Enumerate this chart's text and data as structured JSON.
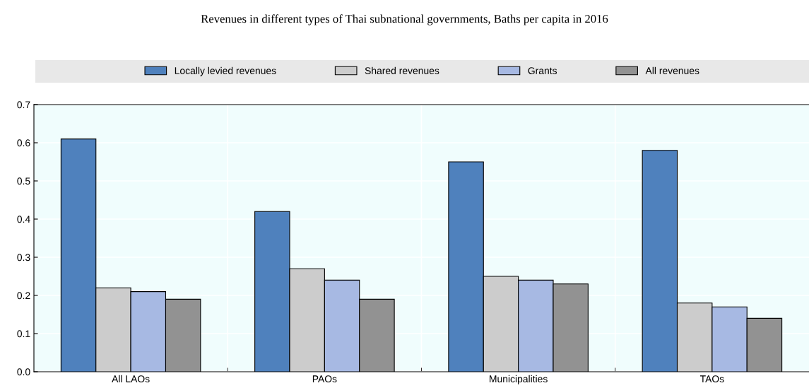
{
  "chart_data": {
    "type": "bar",
    "title": "Revenues in different types of Thai subnational governments, Baths per capita in 2016",
    "categories": [
      "All LAOs",
      "PAOs",
      "Municipalities",
      "TAOs"
    ],
    "series": [
      {
        "name": "Locally levied revenues",
        "color": "#4f81bd",
        "values": [
          0.61,
          0.42,
          0.55,
          0.58
        ]
      },
      {
        "name": "Shared revenues",
        "color": "#cccccc",
        "values": [
          0.22,
          0.27,
          0.25,
          0.18
        ]
      },
      {
        "name": "Grants",
        "color": "#a7b9e3",
        "values": [
          0.21,
          0.24,
          0.24,
          0.17
        ]
      },
      {
        "name": "All revenues",
        "color": "#929292",
        "values": [
          0.19,
          0.19,
          0.23,
          0.14
        ]
      }
    ],
    "ylim": [
      0,
      0.7
    ],
    "yticks": [
      {
        "value": 0,
        "label": "0.0"
      },
      0.1,
      0.2,
      0.3,
      0.4,
      0.5,
      0.6,
      0.7
    ],
    "grid": true,
    "legend": "top"
  }
}
